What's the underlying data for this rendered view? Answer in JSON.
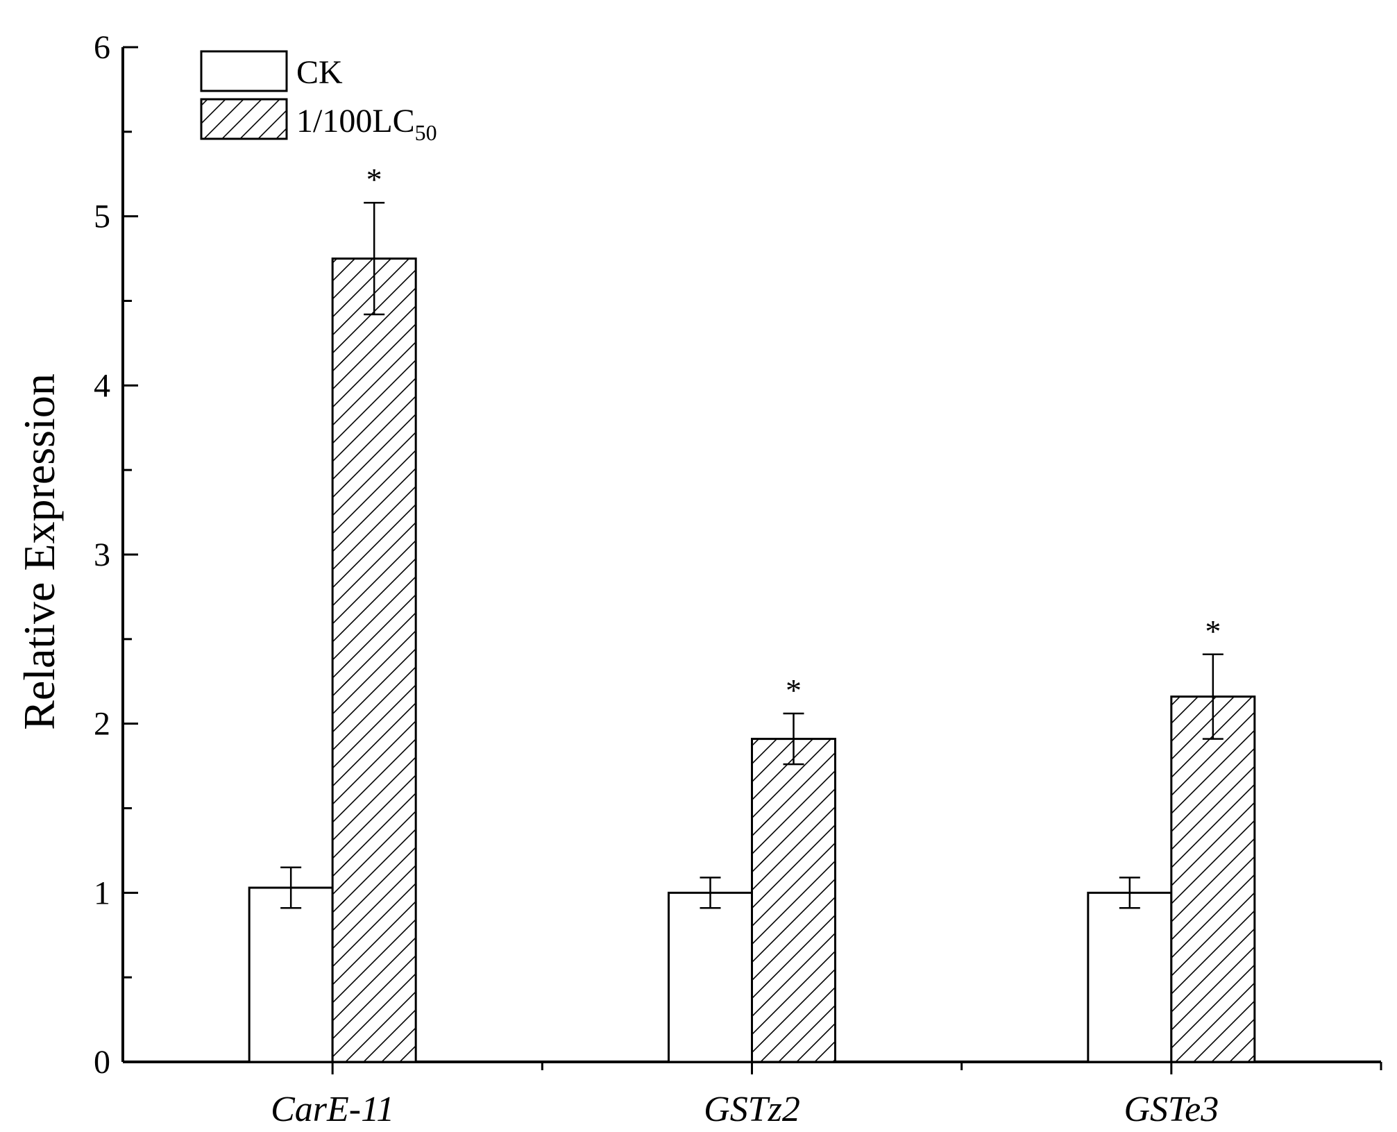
{
  "chart_data": {
    "type": "bar",
    "title": "",
    "xlabel": "",
    "ylabel": "Relative Expression",
    "ylim": [
      0,
      6
    ],
    "yticks": [
      "0",
      "1",
      "2",
      "3",
      "4",
      "5",
      "6"
    ],
    "categories": [
      "CarE-11",
      "GSTz2",
      "GSTe3"
    ],
    "series": [
      {
        "name": "CK",
        "pattern": "solid-white",
        "values": [
          1.03,
          1.0,
          1.0
        ],
        "errors": [
          0.12,
          0.09,
          0.09
        ]
      },
      {
        "name": "1/100LC",
        "name_subscript": "50",
        "pattern": "diagonal-hatch",
        "values": [
          4.75,
          1.91,
          2.16
        ],
        "errors": [
          0.33,
          0.15,
          0.25
        ],
        "significance": [
          "*",
          "*",
          "*"
        ]
      }
    ],
    "legend_position": "top-left",
    "grid": false
  },
  "colors": {
    "stroke": "#000000",
    "fill": "#ffffff"
  }
}
